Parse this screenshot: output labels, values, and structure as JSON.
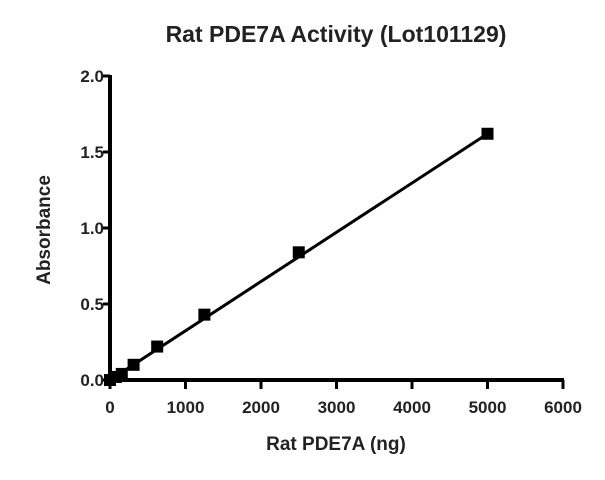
{
  "chart_data": {
    "type": "scatter",
    "title": "Rat PDE7A Activity (Lot101129)",
    "xlabel": "Rat PDE7A (ng)",
    "ylabel": "Absorbance",
    "xlim": [
      0,
      6000
    ],
    "ylim": [
      0.0,
      2.0
    ],
    "xticks": [
      0,
      1000,
      2000,
      3000,
      4000,
      5000,
      6000
    ],
    "xtick_labels": [
      "0",
      "1000",
      "2000",
      "3000",
      "4000",
      "5000",
      "6000"
    ],
    "yticks": [
      0.0,
      0.5,
      1.0,
      1.5,
      2.0
    ],
    "ytick_labels": [
      "0.0",
      "0.5",
      "1.0",
      "1.5",
      "2.0"
    ],
    "grid": false,
    "series": [
      {
        "name": "Rat PDE7A",
        "marker": "square",
        "color": "#000000",
        "x": [
          0,
          78,
          156,
          312.5,
          625,
          1250,
          2500,
          5000
        ],
        "y": [
          0.0,
          0.02,
          0.04,
          0.1,
          0.22,
          0.43,
          0.84,
          1.62
        ]
      }
    ],
    "fit_line": {
      "x": [
        0,
        5000
      ],
      "y": [
        0.0,
        1.62
      ],
      "color": "#000000"
    }
  }
}
